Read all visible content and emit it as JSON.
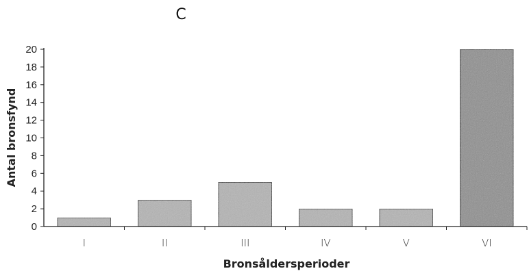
{
  "chart_data": {
    "type": "bar",
    "title": "C",
    "xlabel": "Bronsåldersperioder",
    "ylabel": "Antal bronsfynd",
    "categories": [
      "I",
      "II",
      "III",
      "IV",
      "V",
      "VI"
    ],
    "values": [
      1,
      3,
      5,
      2,
      2,
      20
    ],
    "ylim": [
      0,
      20
    ],
    "yticks": [
      0,
      2,
      4,
      6,
      8,
      10,
      12,
      14,
      16,
      18,
      20
    ],
    "grid": false,
    "legend": "none",
    "bar_color": "#b4b4b4",
    "bar_color_tall": "#8e8e8e"
  }
}
